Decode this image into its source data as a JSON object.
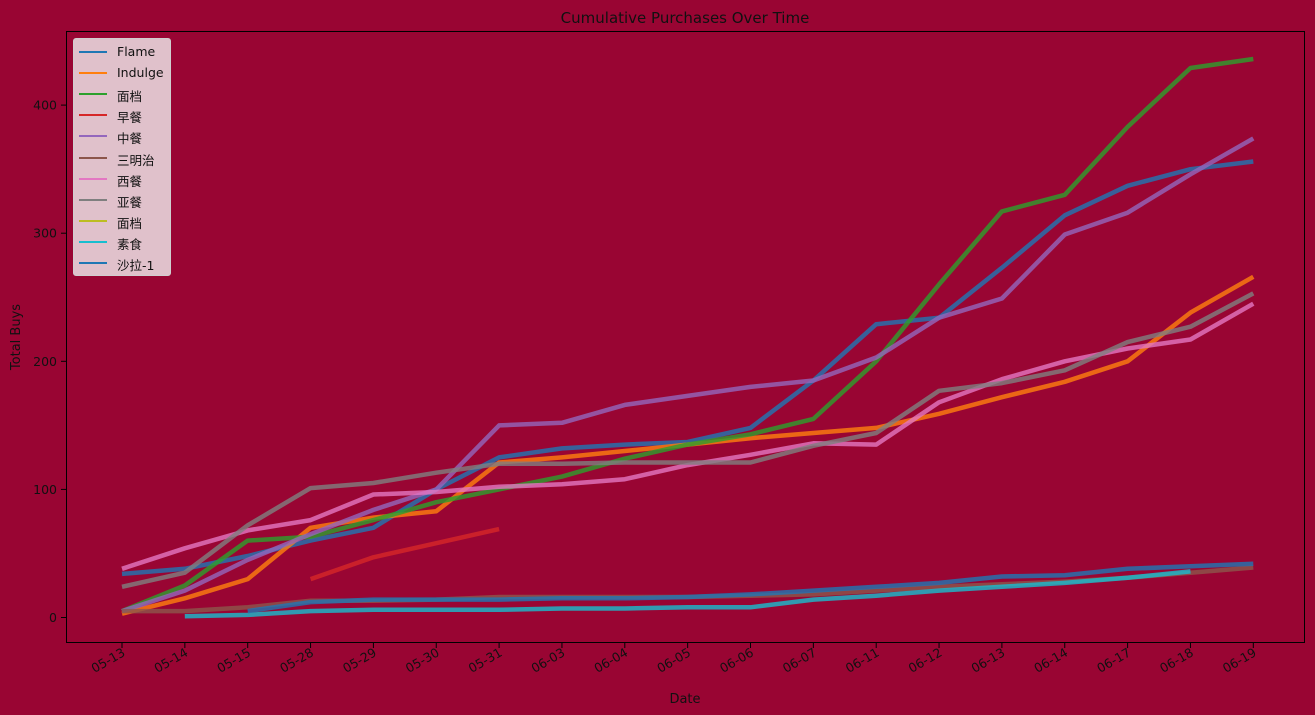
{
  "chart_data": {
    "type": "line",
    "title": "Cumulative Purchases Over Time",
    "xlabel": "Date",
    "ylabel": "Total Buys",
    "categories": [
      "05-13",
      "05-14",
      "05-15",
      "05-28",
      "05-29",
      "05-30",
      "05-31",
      "06-03",
      "06-04",
      "06-05",
      "06-06",
      "06-07",
      "06-11",
      "06-12",
      "06-13",
      "06-14",
      "06-17",
      "06-18",
      "06-19"
    ],
    "y_ticks": [
      0,
      100,
      200,
      300,
      400
    ],
    "ylim": [
      -18,
      460
    ],
    "grid": false,
    "legend_position": "top-left",
    "background_color": "#990533",
    "series": [
      {
        "name": "Flame",
        "color": "#1f77b4",
        "values": [
          34,
          38,
          48,
          60,
          70,
          100,
          125,
          132,
          135,
          137,
          148,
          185,
          229,
          234,
          273,
          314,
          337,
          350,
          356
        ]
      },
      {
        "name": "Indulge",
        "color": "#ff7f0e",
        "values": [
          3,
          15,
          30,
          70,
          78,
          83,
          121,
          125,
          130,
          135,
          140,
          144,
          148,
          159,
          172,
          184,
          200,
          238,
          266
        ]
      },
      {
        "name": "面档",
        "color": "#2ca02c",
        "values": [
          5,
          25,
          60,
          63,
          76,
          90,
          100,
          110,
          124,
          135,
          143,
          155,
          200,
          260,
          317,
          330,
          383,
          429,
          436
        ]
      },
      {
        "name": "早餐",
        "color": "#d62728",
        "values": [
          null,
          null,
          null,
          30,
          47,
          58,
          69,
          null,
          null,
          null,
          null,
          null,
          null,
          null,
          null,
          null,
          null,
          null,
          null
        ]
      },
      {
        "name": "中餐",
        "color": "#9467bd",
        "values": [
          5,
          21,
          45,
          65,
          84,
          100,
          150,
          152,
          166,
          173,
          180,
          185,
          203,
          234,
          249,
          299,
          316,
          346,
          374
        ]
      },
      {
        "name": "三明治",
        "color": "#8c564b",
        "values": [
          5,
          5,
          8,
          13,
          13,
          14,
          16,
          16,
          16,
          16,
          17,
          18,
          21,
          24,
          26,
          28,
          31,
          35,
          39
        ]
      },
      {
        "name": "西餐",
        "color": "#e377c2",
        "values": [
          38,
          54,
          68,
          76,
          96,
          98,
          102,
          104,
          108,
          119,
          127,
          136,
          135,
          168,
          186,
          200,
          210,
          217,
          245
        ]
      },
      {
        "name": "亚餐",
        "color": "#7f7f7f",
        "values": [
          24,
          35,
          72,
          101,
          105,
          113,
          120,
          120,
          121,
          121,
          121,
          134,
          144,
          177,
          183,
          193,
          215,
          227,
          253
        ]
      },
      {
        "name": "面档",
        "color": "#bcbd22",
        "values": [
          null,
          null,
          null,
          null,
          null,
          null,
          null,
          null,
          null,
          null,
          null,
          null,
          null,
          null,
          null,
          null,
          null,
          null,
          null
        ]
      },
      {
        "name": "素食",
        "color": "#17becf",
        "values": [
          null,
          1,
          2,
          5,
          6,
          6,
          6,
          7,
          7,
          8,
          8,
          14,
          17,
          21,
          24,
          27,
          31,
          36,
          null
        ]
      },
      {
        "name": "沙拉-1",
        "color": "#1f77b4",
        "values": [
          null,
          null,
          5,
          12,
          14,
          14,
          14,
          15,
          15,
          16,
          18,
          21,
          24,
          27,
          32,
          33,
          38,
          40,
          42
        ]
      }
    ]
  }
}
